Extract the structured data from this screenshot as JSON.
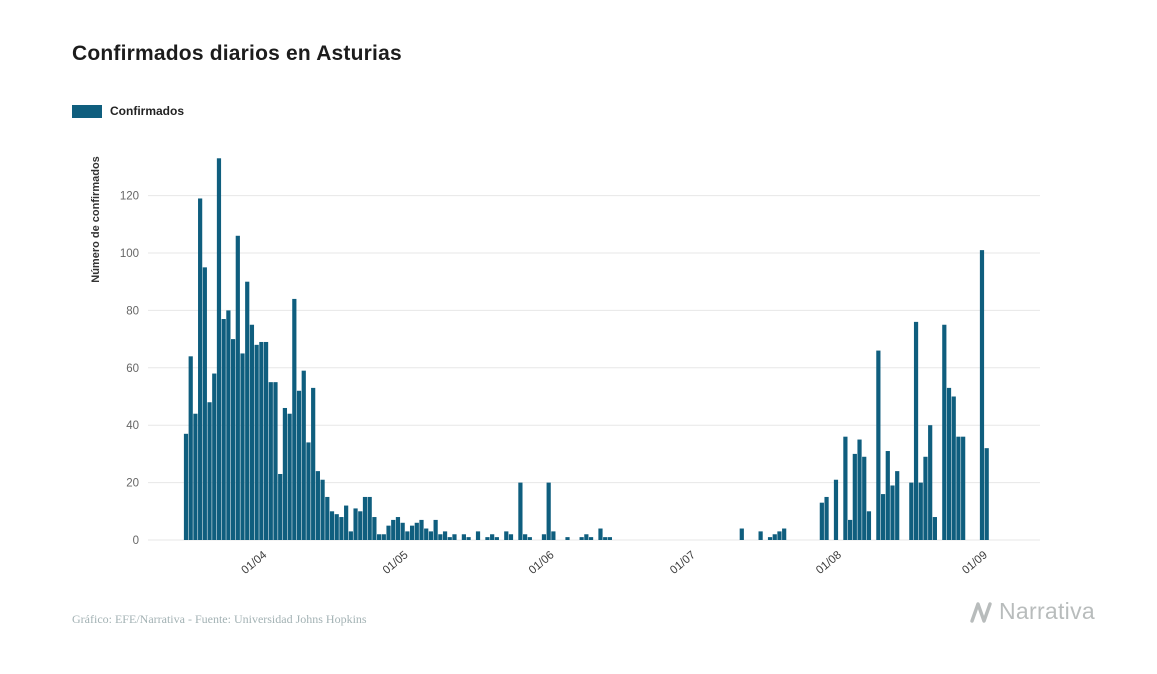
{
  "chart": {
    "title": "Confirmados diarios en Asturias",
    "legend_label": "Confirmados",
    "ylabel": "Número de confirmados"
  },
  "footer": {
    "credit": "Gráfico: EFE/Narrativa - Fuente: Universidad Johns Hopkins",
    "brand": "Narrativa"
  },
  "colors": {
    "bar": "#0f5e7e",
    "grid": "#e7e7e7",
    "y_tick_text": "#666666",
    "x_tick_text": "#3d3d3d",
    "title_text": "#1c1c1c",
    "credit_text": "#a3b2b4",
    "brand_text": "#b8bcbc"
  },
  "chart_data": {
    "type": "bar",
    "title": "Confirmados diarios en Asturias",
    "xlabel": "",
    "ylabel": "Número de confirmados",
    "series_name": "Confirmados",
    "legend_position": "top-left",
    "grid": "horizontal",
    "start_date": "2020-03-16",
    "x_tick_labels": [
      "01/04",
      "01/05",
      "01/06",
      "01/07",
      "01/08",
      "01/09"
    ],
    "x_tick_day_index": [
      16,
      46,
      77,
      107,
      138,
      169
    ],
    "y_ticks": [
      0,
      20,
      40,
      60,
      80,
      100,
      120
    ],
    "ylim": [
      0,
      140
    ],
    "values": [
      37,
      64,
      44,
      119,
      95,
      48,
      58,
      133,
      77,
      80,
      70,
      106,
      65,
      90,
      75,
      68,
      69,
      69,
      55,
      55,
      23,
      46,
      44,
      84,
      52,
      59,
      34,
      53,
      24,
      21,
      15,
      10,
      9,
      8,
      12,
      3,
      11,
      10,
      15,
      15,
      8,
      2,
      2,
      5,
      7,
      8,
      6,
      3,
      5,
      6,
      7,
      4,
      3,
      7,
      2,
      3,
      1,
      2,
      0,
      2,
      1,
      0,
      3,
      0,
      1,
      2,
      1,
      0,
      3,
      2,
      0,
      20,
      2,
      1,
      0,
      0,
      2,
      20,
      3,
      0,
      0,
      1,
      0,
      0,
      1,
      2,
      1,
      0,
      4,
      1,
      1,
      0,
      0,
      0,
      0,
      0,
      0,
      0,
      0,
      0,
      0,
      0,
      0,
      0,
      0,
      0,
      0,
      0,
      0,
      0,
      0,
      0,
      0,
      0,
      0,
      0,
      0,
      0,
      4,
      0,
      0,
      0,
      3,
      0,
      1,
      2,
      3,
      4,
      0,
      0,
      0,
      0,
      0,
      0,
      0,
      13,
      15,
      0,
      21,
      0,
      36,
      7,
      30,
      35,
      29,
      10,
      0,
      66,
      16,
      31,
      19,
      24,
      0,
      0,
      20,
      76,
      20,
      29,
      40,
      8,
      0,
      75,
      53,
      50,
      36,
      36,
      0,
      0,
      0,
      101,
      32
    ],
    "bar_color": "#0f5e7e"
  }
}
